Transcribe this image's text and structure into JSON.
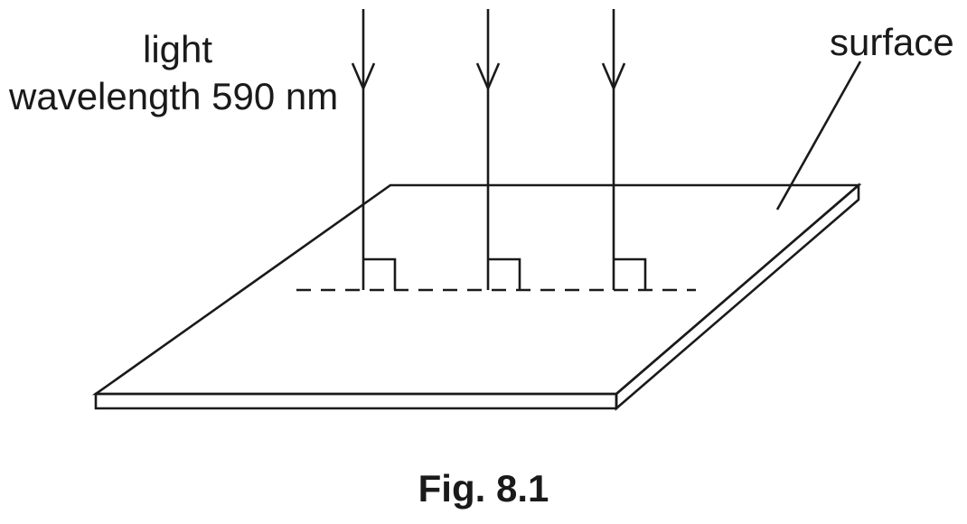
{
  "diagram": {
    "light_label_line1": "light",
    "light_label_line2": "wavelength 590 nm",
    "surface_label": "surface",
    "caption": "Fig. 8.1",
    "rays": [
      {
        "name": "ray-1"
      },
      {
        "name": "ray-2"
      },
      {
        "name": "ray-3"
      }
    ]
  }
}
